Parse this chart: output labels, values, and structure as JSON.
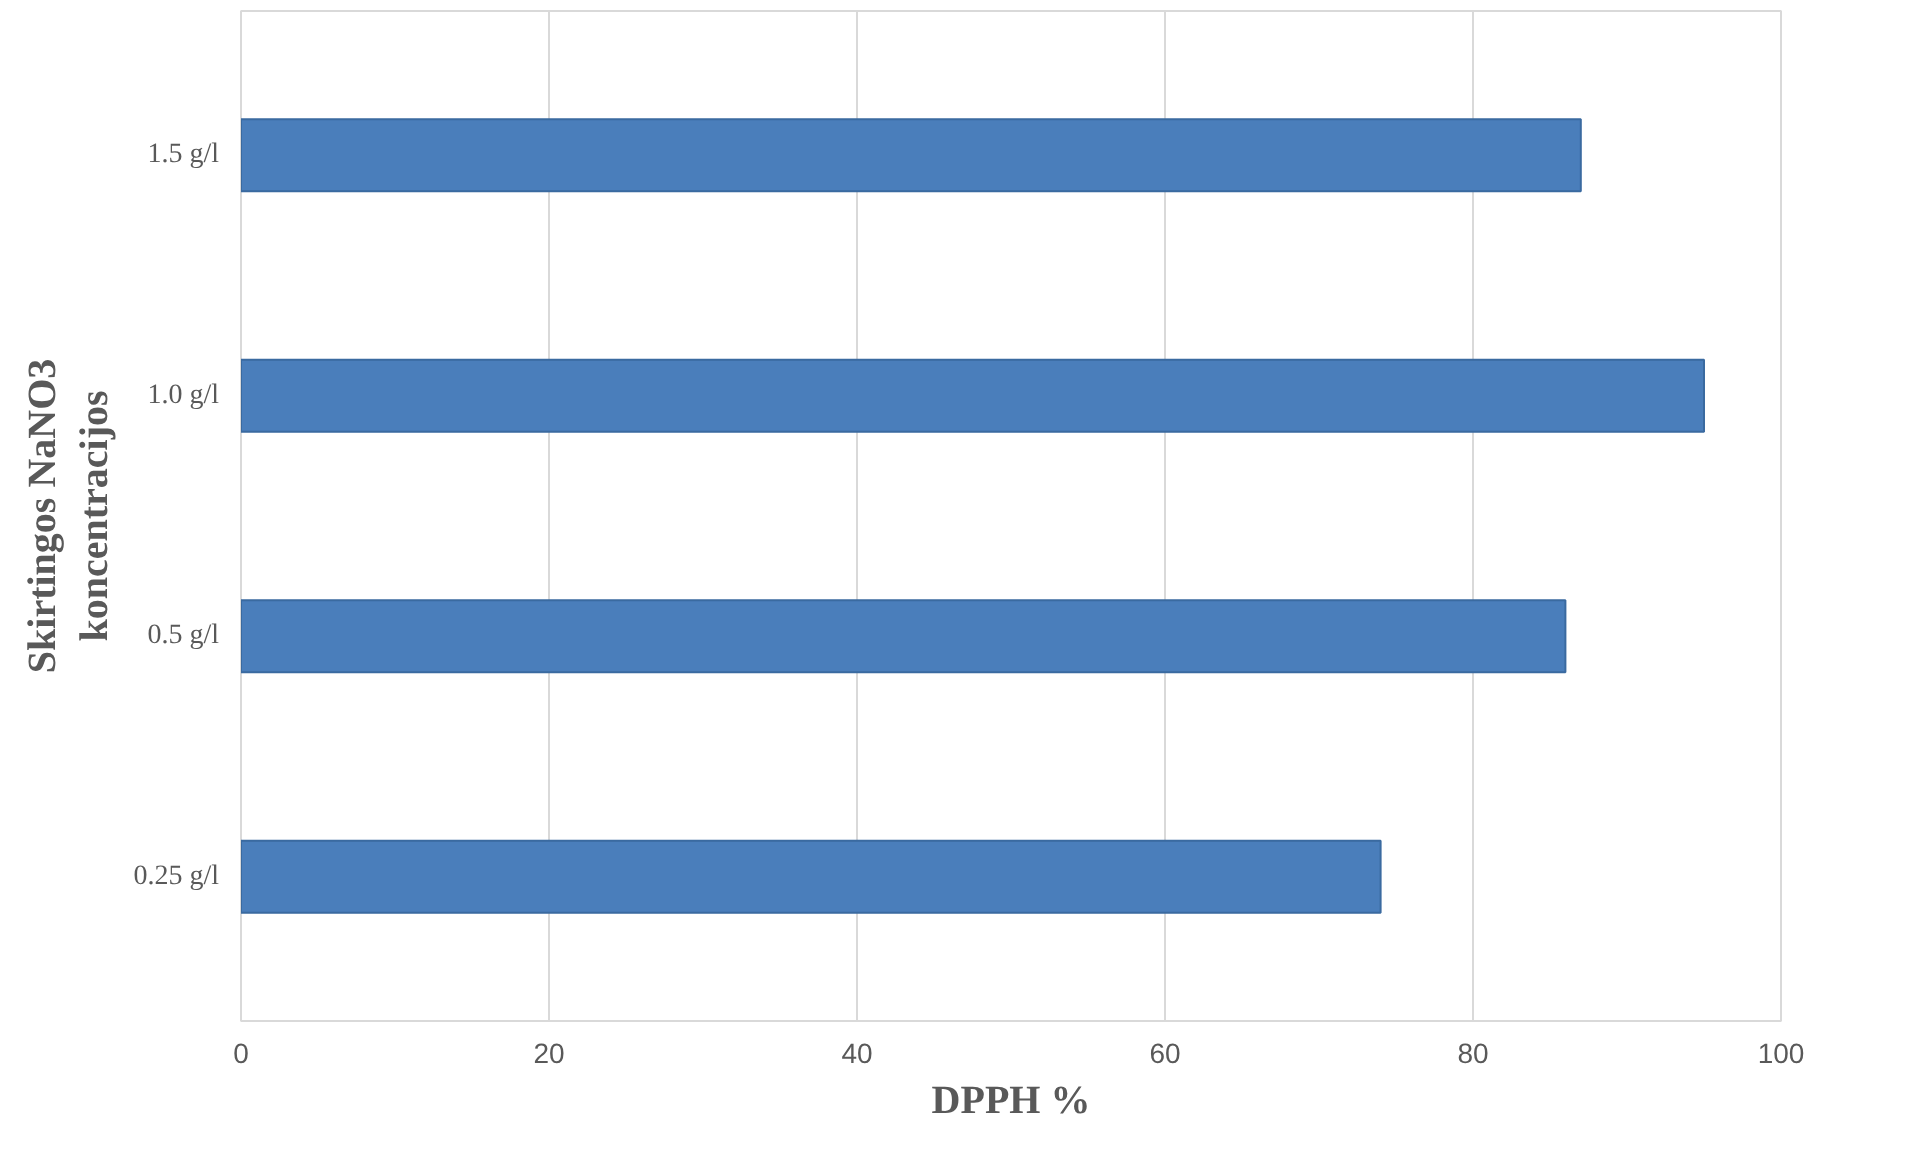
{
  "chart_data": {
    "type": "bar",
    "orientation": "horizontal",
    "xlabel": "DPPH %",
    "ylabel": "Skirtingos NaNO3\nkoncentracijos",
    "categories": [
      "1.5 g/l",
      "1.0 g/l",
      "0.5 g/l",
      "0.25 g/l"
    ],
    "values": [
      87,
      95,
      86,
      74
    ],
    "color": "#4a7ebb",
    "xlim": [
      0,
      100
    ],
    "xticks": [
      0,
      20,
      40,
      60,
      80,
      100
    ],
    "grid": "x"
  }
}
